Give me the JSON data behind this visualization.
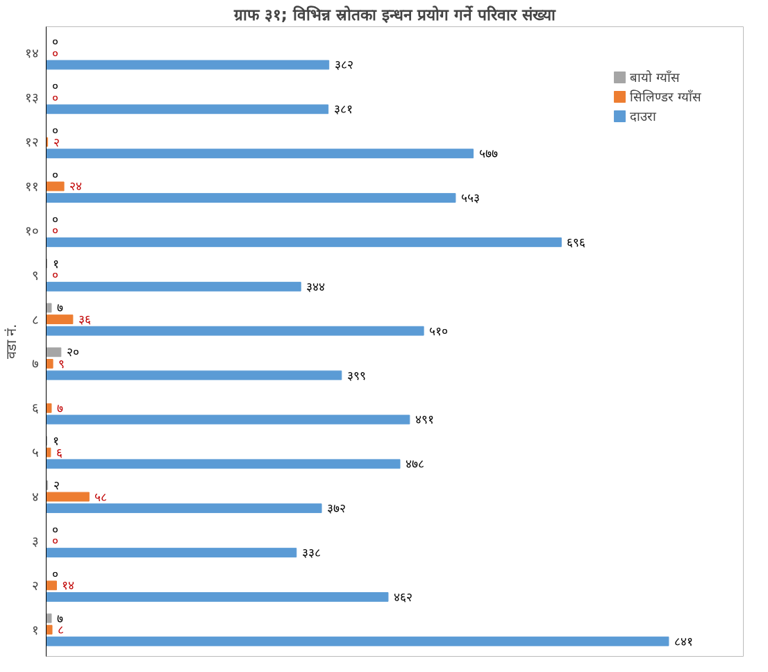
{
  "chart_data": {
    "type": "bar",
    "orientation": "horizontal",
    "title": "ग्राफ ३१; विभिन्न स्रोतका इन्धन प्रयोग गर्ने परिवार संख्या",
    "ylabel": "वडा नं.",
    "categories": [
      "१४",
      "१३",
      "१२",
      "११",
      "१०",
      "९",
      "८",
      "७",
      "६",
      "५",
      "४",
      "३",
      "२",
      "१"
    ],
    "series": [
      {
        "name": "बायो ग्याँस",
        "color": "#a5a5a5",
        "values": [
          0,
          0,
          0,
          0,
          0,
          1,
          7,
          20,
          null,
          1,
          2,
          0,
          0,
          7
        ],
        "value_labels": [
          "०",
          "०",
          "०",
          "०",
          "०",
          "१",
          "७",
          "२०",
          null,
          "१",
          "२",
          "०",
          "०",
          "७"
        ]
      },
      {
        "name": "सिलिण्डर ग्याँस",
        "color": "#ed7d31",
        "values": [
          0,
          0,
          2,
          24,
          0,
          0,
          36,
          9,
          7,
          6,
          58,
          0,
          14,
          8
        ],
        "value_labels": [
          "०",
          "०",
          "२",
          "२४",
          "०",
          "०",
          "३६",
          "९",
          "७",
          "६",
          "५८",
          "०",
          "१४",
          "८"
        ]
      },
      {
        "name": "दाउरा",
        "color": "#5b9bd5",
        "values": [
          382,
          381,
          577,
          553,
          696,
          344,
          510,
          399,
          491,
          478,
          372,
          338,
          462,
          841
        ],
        "value_labels": [
          "३८२",
          "३८१",
          "५७७",
          "५५३",
          "६९६",
          "३४४",
          "५१०",
          "३९९",
          "४९१",
          "४७८",
          "३७२",
          "३३८",
          "४६२",
          "८४१"
        ]
      }
    ],
    "legend": "right",
    "tick_labels": "y"
  }
}
